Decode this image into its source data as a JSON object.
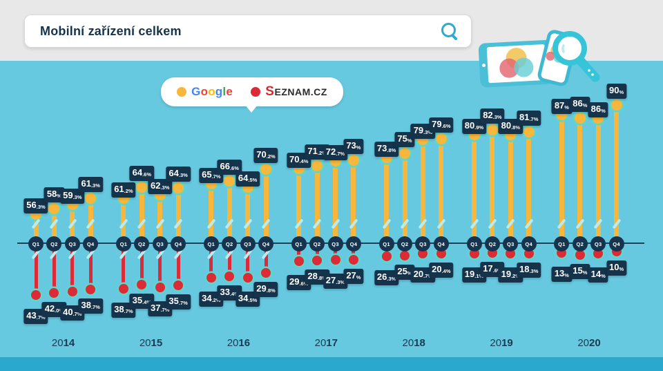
{
  "header": {
    "title": "Mobilní zařízení celkem"
  },
  "legend": {
    "google": "Google",
    "seznam": "Seznam.cz"
  },
  "colors": {
    "background": "#67C9E0",
    "header_bg": "#E9E8E8",
    "footer_strip": "#2AA8CE",
    "label_navy": "#16334C",
    "google_yellow": "#F7B63C",
    "seznam_red": "#DB2B36",
    "ring_teal": "#5BD8CC",
    "google_letter_colors": [
      "#4285F4",
      "#EA4335",
      "#FBBC05",
      "#4285F4",
      "#34A853",
      "#EA4335"
    ],
    "seznam_s_red": "#D7282F"
  },
  "chart_data": {
    "type": "lollipop",
    "title": "Mobilní zařízení celkem",
    "unit": "%",
    "legend_entries": [
      "Google",
      "Seznam.cz"
    ],
    "years": [
      "2014",
      "2015",
      "2016",
      "2017",
      "2018",
      "2019",
      "2020"
    ],
    "quarters": [
      "Q1",
      "Q2",
      "Q3",
      "Q4"
    ],
    "series": [
      {
        "name": "Google",
        "color": "#F7B63C",
        "direction": "up",
        "values_by_year": [
          [
            "56.3",
            "58",
            "59.3",
            "61.3"
          ],
          [
            "61.2",
            "64.6",
            "62.3",
            "64.3"
          ],
          [
            "65.7",
            "66.6",
            "64.5",
            "70.2"
          ],
          [
            "70.4",
            "71.2",
            "72.7",
            "73"
          ],
          [
            "73.8",
            "75",
            "79.3",
            "79.6"
          ],
          [
            "80.9",
            "82.3",
            "80.8",
            "81.7"
          ],
          [
            "87",
            "86",
            "86",
            "90"
          ]
        ]
      },
      {
        "name": "Seznam.cz",
        "color": "#DB2B36",
        "direction": "down",
        "values_by_year": [
          [
            "43.7",
            "42.0",
            "40.7",
            "38.7"
          ],
          [
            "38.7",
            "35.4",
            "37.7",
            "35.7"
          ],
          [
            "34.2",
            "33.4",
            "34.5",
            "29.8"
          ],
          [
            "29.6",
            "28.8",
            "27.3",
            "27"
          ],
          [
            "26.3",
            "25",
            "20.7",
            "20.4"
          ],
          [
            "19.1",
            "17.6",
            "19.2",
            "18.3"
          ],
          [
            "13",
            "15",
            "14",
            "10"
          ]
        ]
      }
    ]
  }
}
